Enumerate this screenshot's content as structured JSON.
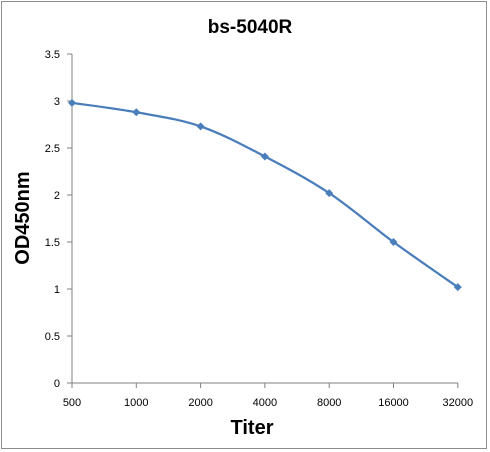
{
  "chart_data": {
    "type": "line",
    "title": "bs-5040R",
    "xlabel": "Titer",
    "ylabel": "OD450nm",
    "categories": [
      "500",
      "1000",
      "2000",
      "4000",
      "8000",
      "16000",
      "32000"
    ],
    "series": [
      {
        "values": [
          2.98,
          2.88,
          2.73,
          2.41,
          2.02,
          1.5,
          1.02
        ]
      }
    ],
    "ylim": [
      0,
      3.5
    ],
    "yticks": [
      "0",
      "0.5",
      "1",
      "1.5",
      "2",
      "2.5",
      "3",
      "3.5"
    ],
    "grid": false,
    "legend": "none",
    "colors": {
      "series": "#4a7ebb",
      "axis": "#808080",
      "frame": "#8c8c8c"
    }
  }
}
